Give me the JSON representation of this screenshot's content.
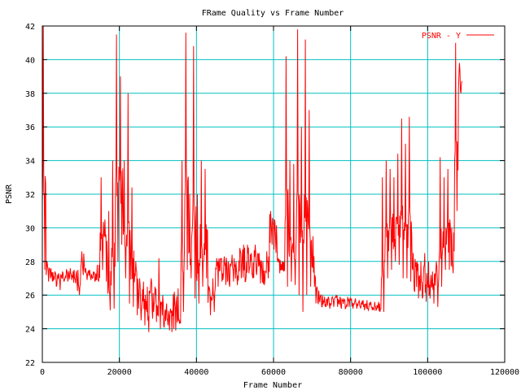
{
  "chart_data": {
    "type": "line",
    "title": "FRame Quality vs Frame Number",
    "xlabel": "Frame Number",
    "ylabel": "PSNR",
    "xlim": [
      0,
      120000
    ],
    "ylim": [
      22,
      42
    ],
    "xticks": [
      0,
      20000,
      40000,
      60000,
      80000,
      100000,
      120000
    ],
    "yticks": [
      22,
      24,
      26,
      28,
      30,
      32,
      34,
      36,
      38,
      40,
      42
    ],
    "grid": true,
    "legend_position": "top-right",
    "colors": {
      "series": "#ff0000",
      "grid": "#00c0c0",
      "axis": "#000000"
    },
    "series": [
      {
        "name": "PSNR - Y",
        "bin_size_frames": 1000,
        "note": "per-1000-frame minimum and maximum PSNR (noisy signal)",
        "min": [
          27.5,
          26.8,
          26.8,
          26.5,
          26.3,
          26.8,
          26.8,
          26.9,
          26.7,
          26.0,
          27.2,
          26.9,
          26.9,
          26.8,
          26.8,
          27.5,
          26.8,
          25.1,
          25.2,
          28,
          29,
          27,
          25.5,
          25.3,
          24.8,
          24.5,
          24.2,
          23.8,
          24.6,
          24.4,
          24,
          24.1,
          24.2,
          23.8,
          23.9,
          24.3,
          25,
          27.5,
          27,
          25.8,
          25.5,
          26.5,
          27,
          24.8,
          25,
          26.5,
          26.8,
          26.6,
          26.5,
          26.8,
          26.6,
          27,
          26.8,
          27.3,
          27,
          27.2,
          26.7,
          26.6,
          27,
          29,
          28.5,
          27.3,
          27.4,
          26.5,
          26.8,
          26.6,
          26,
          25,
          26,
          26.5,
          26.5,
          25.5,
          25.3,
          25.3,
          25.2,
          25.3,
          25.3,
          25.2,
          25.2,
          25.3,
          25.2,
          25.2,
          25.2,
          25.1,
          25.1,
          25.1,
          25.1,
          25.0,
          25,
          27,
          27.5,
          28,
          27.8,
          27,
          27,
          26.8,
          26.2,
          25.8,
          25.8,
          25.6,
          25.8,
          25.5,
          25.3,
          26.5,
          27.5,
          27.5,
          27.3,
          31,
          38
        ],
        "max": [
          42,
          28,
          27.6,
          27.4,
          27.3,
          27.4,
          27.5,
          27.6,
          27.5,
          27.5,
          28.6,
          27.6,
          27.5,
          27.4,
          27.8,
          33,
          30.5,
          31,
          34,
          41.5,
          39,
          34,
          38,
          32.4,
          28,
          27,
          26.8,
          26.5,
          27,
          26.5,
          28.2,
          26,
          25.5,
          25.2,
          26.2,
          26.4,
          34,
          41.6,
          32,
          40.8,
          32,
          34,
          33.5,
          26.5,
          27,
          28.2,
          28.2,
          28.3,
          28,
          28.4,
          28,
          28.8,
          29,
          29,
          28.5,
          29,
          28.5,
          28,
          28.6,
          31,
          30.5,
          28.2,
          28,
          40.2,
          34,
          33.8,
          41.8,
          36,
          41.2,
          37,
          29.5,
          26.5,
          26,
          25.9,
          25.9,
          25.9,
          26,
          25.9,
          25.8,
          25.9,
          25.8,
          25.8,
          25.7,
          25.7,
          25.7,
          25.6,
          25.6,
          25.6,
          33,
          34,
          33.5,
          33,
          34.4,
          36.5,
          35,
          36.6,
          28.5,
          28,
          28,
          28.5,
          28,
          27.4,
          28,
          34.2,
          33,
          33.5,
          30,
          41,
          39.8
        ]
      }
    ]
  }
}
